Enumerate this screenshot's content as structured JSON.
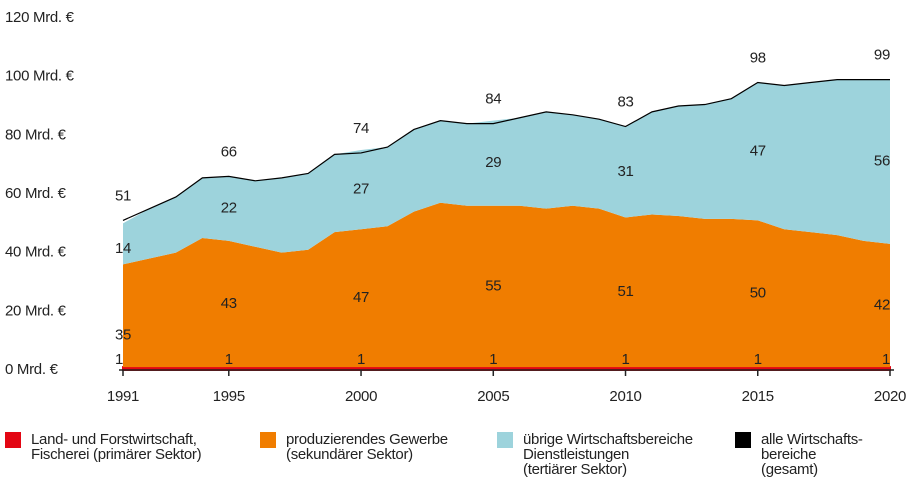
{
  "chart_data": {
    "type": "area",
    "x": [
      1991,
      1992,
      1993,
      1994,
      1995,
      1996,
      1997,
      1998,
      1999,
      2000,
      2001,
      2002,
      2003,
      2004,
      2005,
      2006,
      2007,
      2008,
      2009,
      2010,
      2011,
      2012,
      2013,
      2014,
      2015,
      2016,
      2017,
      2018,
      2019,
      2020
    ],
    "xlim": [
      1991,
      2020
    ],
    "xticks": [
      1991,
      1995,
      2000,
      2005,
      2010,
      2015,
      2020
    ],
    "ylim": [
      0,
      120
    ],
    "yticks": [
      {
        "value": 0,
        "label": "0 Mrd. €"
      },
      {
        "value": 20,
        "label": "20 Mrd. €"
      },
      {
        "value": 40,
        "label": "40 Mrd. €"
      },
      {
        "value": 60,
        "label": "60 Mrd. €"
      },
      {
        "value": 80,
        "label": "80 Mrd. €"
      },
      {
        "value": 100,
        "label": "100 Mrd. €"
      },
      {
        "value": 120,
        "label": "120 Mrd. €"
      }
    ],
    "series": [
      {
        "name": "Land- und Forstwirtschaft,\nFischerei (primärer Sektor)",
        "color": "#e30613",
        "values": [
          1,
          1,
          1,
          1,
          1,
          1,
          1,
          1,
          1,
          1,
          1,
          1,
          1,
          1,
          1,
          1,
          1,
          1,
          1,
          1,
          1,
          1,
          1,
          1,
          1,
          1,
          1,
          1,
          1,
          1
        ],
        "value_labels": [
          "1",
          null,
          null,
          null,
          "1",
          null,
          null,
          null,
          null,
          "1",
          null,
          null,
          null,
          null,
          "1",
          null,
          null,
          null,
          null,
          "1",
          null,
          null,
          null,
          null,
          "1",
          null,
          null,
          null,
          null,
          "1"
        ]
      },
      {
        "name": "produzierendes Gewerbe\n(sekundärer Sektor)",
        "color": "#f07d00",
        "values": [
          35,
          37,
          39,
          44,
          43,
          41,
          39,
          40,
          46,
          47,
          48,
          53,
          56,
          55,
          55,
          55,
          54,
          55,
          54,
          51,
          52,
          51.5,
          50.5,
          50.5,
          50,
          47,
          46,
          45,
          43,
          42
        ],
        "value_labels": [
          "35",
          null,
          null,
          null,
          "43",
          null,
          null,
          null,
          null,
          "47",
          null,
          null,
          null,
          null,
          "55",
          null,
          null,
          null,
          null,
          "51",
          null,
          null,
          null,
          null,
          "50",
          null,
          null,
          null,
          null,
          "42"
        ]
      },
      {
        "name": "übrige Wirtschaftsbereiche\nDienstleistungen\n(tertiärer Sektor)",
        "color": "#9dd3dc",
        "values": [
          14,
          17,
          19,
          20.5,
          22,
          22.5,
          25.5,
          26,
          26.5,
          27,
          27,
          28,
          28,
          28,
          29,
          30,
          33,
          31,
          30.5,
          31,
          35,
          37.5,
          39,
          41,
          47,
          49,
          51,
          53,
          55,
          56
        ],
        "value_labels": [
          "14",
          null,
          null,
          null,
          "22",
          null,
          null,
          null,
          null,
          "27",
          null,
          null,
          null,
          null,
          "29",
          null,
          null,
          null,
          null,
          "31",
          null,
          null,
          null,
          null,
          "47",
          null,
          null,
          null,
          null,
          "56"
        ]
      },
      {
        "name": "alle Wirtschafts-\nbereiche\n(gesamt)",
        "color": "#000000",
        "type": "line",
        "values": [
          51,
          55,
          59,
          65.5,
          66,
          64.5,
          65.5,
          67,
          73.5,
          74,
          76,
          82,
          85,
          84,
          84,
          86,
          88,
          87,
          85.5,
          83,
          88,
          90,
          90.5,
          92.5,
          98,
          97,
          98,
          99,
          99,
          99
        ],
        "value_labels": [
          "51",
          null,
          null,
          null,
          "66",
          null,
          null,
          null,
          null,
          "74",
          null,
          null,
          null,
          null,
          "84",
          null,
          null,
          null,
          null,
          "83",
          null,
          null,
          null,
          null,
          "98",
          null,
          null,
          null,
          null,
          "99"
        ]
      }
    ]
  }
}
